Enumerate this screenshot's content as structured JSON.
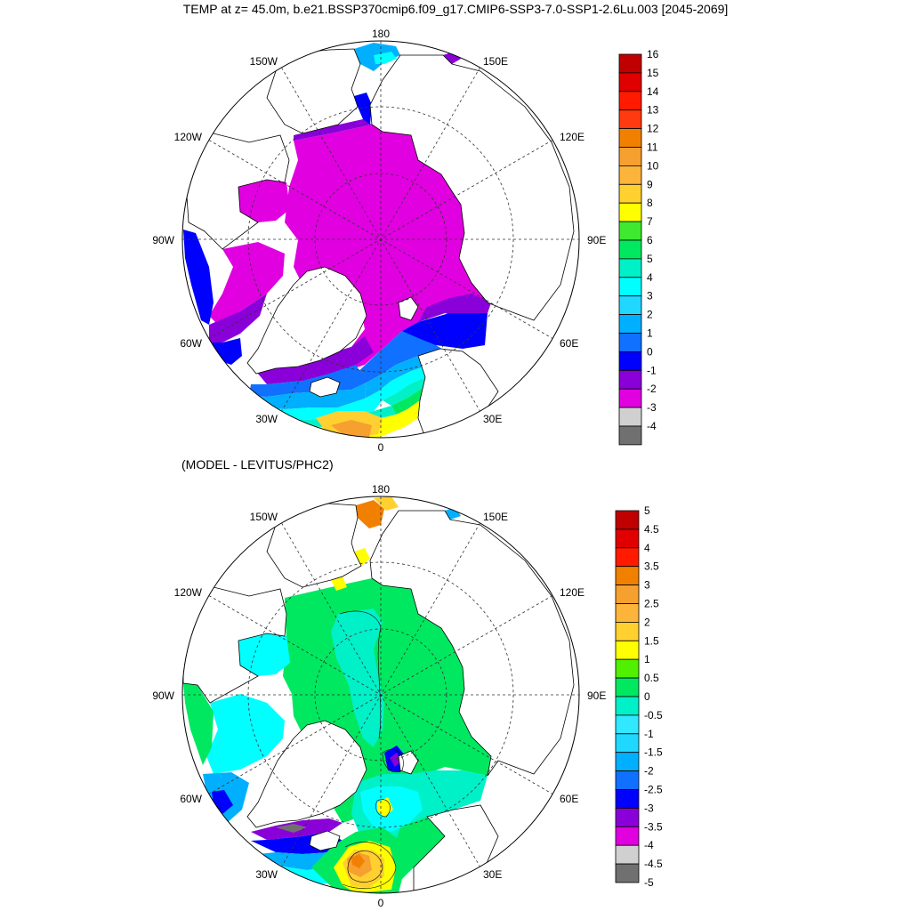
{
  "title": "TEMP at z=  45.0m, b.e21.BSSP370cmip6.f09_g17.CMIP6-SSP3-7.0-SSP1-2.6Lu.003 [2045-2069]",
  "subtitle": "(MODEL - LEVITUS/PHC2)",
  "longitude_labels": {
    "lon_180": "180",
    "lon_150W": "150W",
    "lon_150E": "150E",
    "lon_120W": "120W",
    "lon_120E": "120E",
    "lon_90W": "90W",
    "lon_90E": "90E",
    "lon_60W": "60W",
    "lon_60E": "60E",
    "lon_30W": "30W",
    "lon_30E": "30E",
    "lon_0": "0"
  },
  "colorbar_top": {
    "labels": [
      "16",
      "15",
      "14",
      "13",
      "12",
      "11",
      "10",
      "9",
      "8",
      "7",
      "6",
      "5",
      "4",
      "3",
      "2",
      "1",
      "0",
      "-1",
      "-2",
      "-3",
      "-4"
    ],
    "colors": [
      "#c00000",
      "#e00000",
      "#ff1a00",
      "#ff3a10",
      "#f28000",
      "#f6a030",
      "#fdb43a",
      "#ffd030",
      "#ffff00",
      "#40e830",
      "#00e860",
      "#00f0c8",
      "#00ffff",
      "#20d8ff",
      "#00b0ff",
      "#1070ff",
      "#0000ff",
      "#8a00d8",
      "#e000e0",
      "#d0d0d0",
      "#707070"
    ]
  },
  "colorbar_bottom": {
    "labels": [
      "5",
      "4.5",
      "4",
      "3.5",
      "3",
      "2.5",
      "2",
      "1.5",
      "1",
      "0.5",
      "0",
      "-0.5",
      "-1",
      "-1.5",
      "-2",
      "-2.5",
      "-3",
      "-3.5",
      "-4",
      "-4.5",
      "-5"
    ],
    "colors": [
      "#c00000",
      "#e00000",
      "#ff1a00",
      "#f28000",
      "#f6a030",
      "#fdb43a",
      "#ffd030",
      "#ffff00",
      "#50f000",
      "#00e860",
      "#00f0c8",
      "#30e8ff",
      "#20d8ff",
      "#00b0ff",
      "#1070ff",
      "#0000ff",
      "#8a00d8",
      "#e000e0",
      "#d0d0d0",
      "#707070"
    ]
  },
  "fill_colors": {
    "magenta": "#e000e0",
    "purple": "#8a00d8",
    "blue": "#0000ff",
    "mid_blue": "#1070ff",
    "sky": "#00b0ff",
    "cyan": "#00ffff",
    "aqua": "#00f0c8",
    "green": "#00e860",
    "lime": "#50f000",
    "yellow": "#ffff00",
    "gold": "#ffd030",
    "orange": "#f6a030",
    "dark_orange": "#f28000",
    "gray": "#707070"
  }
}
